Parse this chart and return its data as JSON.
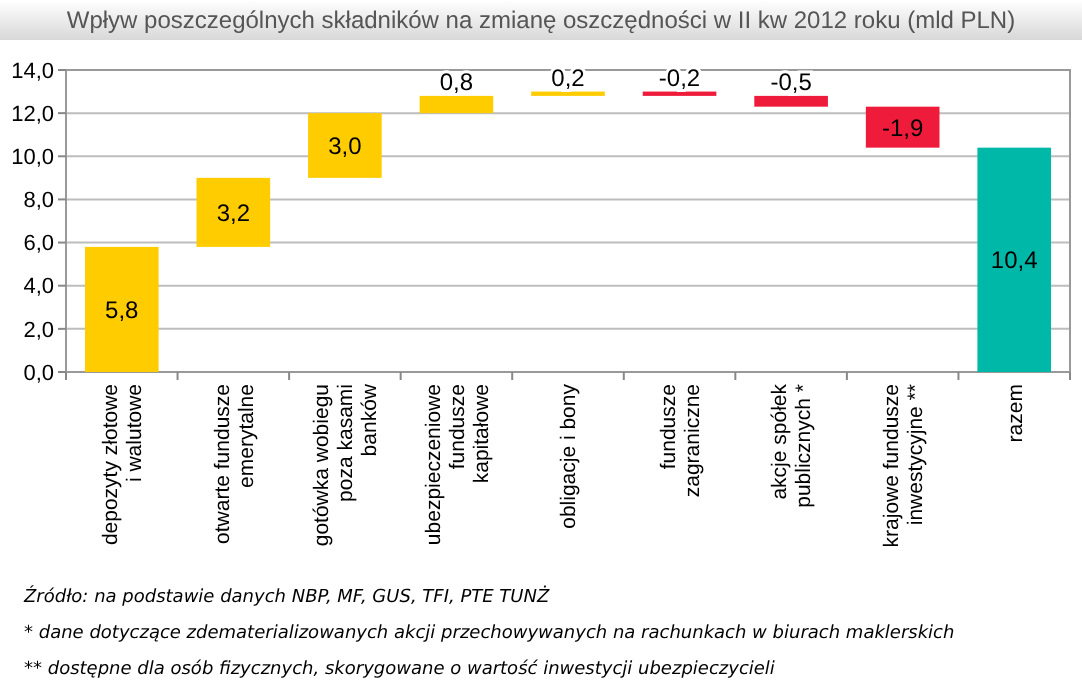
{
  "chart_data": {
    "type": "bar",
    "title": "Wpływ poszczególnych składników na zmianę oszczędności w II kw 2012 roku (mld PLN)",
    "categories": [
      "depozyty złotowe i walutowe",
      "otwarte fundusze emerytalne",
      "gotówka wobiegu poza kasami banków",
      "ubezpieczeniowe fundusze kapitałowe",
      "obligacje i bony",
      "fundusze zagraniczne",
      "akcje spółek publicznych *",
      "krajowe fundusze inwestycyjne **",
      "razem"
    ],
    "values": [
      5.8,
      3.2,
      3.0,
      0.8,
      0.2,
      -0.2,
      -0.5,
      -1.9,
      10.4
    ],
    "base": [
      0,
      5.8,
      9.0,
      12.0,
      12.8,
      13.0,
      12.8,
      12.3,
      0
    ],
    "value_labels": [
      "5,8",
      "3,2",
      "3,0",
      "0,8",
      "0,2",
      "-0,2",
      "-0,5",
      "-1,9",
      "10,4"
    ],
    "colors": [
      "#ffcc00",
      "#ffcc00",
      "#ffcc00",
      "#ffcc00",
      "#ffcc00",
      "#ee1c3a",
      "#ee1c3a",
      "#ee1c3a",
      "#00b8a8"
    ],
    "ylim": [
      0,
      14
    ],
    "yticks": [
      {
        "value": 0,
        "label": "0,0"
      },
      {
        "value": 2,
        "label": "2,0"
      },
      {
        "value": 4,
        "label": "4,0"
      },
      {
        "value": 6,
        "label": "6,0"
      },
      {
        "value": 8,
        "label": "8,0"
      },
      {
        "value": 10,
        "label": "10,0"
      },
      {
        "value": 12,
        "label": "12,0"
      },
      {
        "value": 14,
        "label": "14,0"
      }
    ],
    "grid": "y",
    "annotations": [
      "Źródło: na podstawie danych NBP, MF, GUS, TFI, PTE TUNŻ",
      "* dane dotyczące zdematerializowanych akcji przechowywanych na rachunkach w biurach maklerskich",
      "** dostępne dla osób fizycznych, skorygowane o wartość inwestycji ubezpieczycieli"
    ]
  }
}
